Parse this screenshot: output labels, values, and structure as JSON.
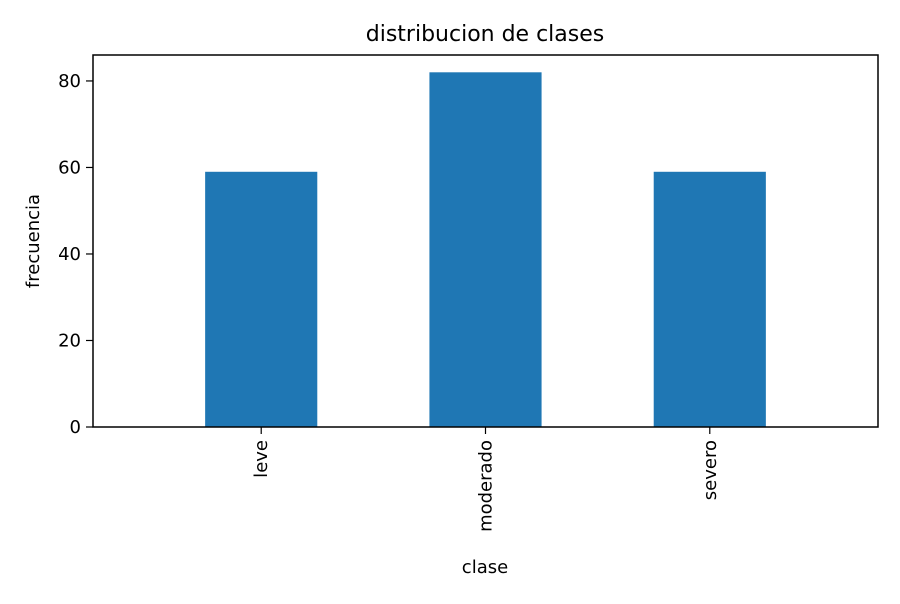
{
  "chart_data": {
    "type": "bar",
    "title": "distribucion de clases",
    "xlabel": "clase",
    "ylabel": "frecuencia",
    "categories": [
      "leve",
      "moderado",
      "severo"
    ],
    "values": [
      59,
      82,
      59
    ],
    "ylim": [
      0,
      86
    ],
    "yticks": [
      0,
      20,
      40,
      60,
      80
    ],
    "grid": false,
    "legend": "none",
    "bar_color": "#1f77b4",
    "x_tick_rotation": "vertical"
  }
}
